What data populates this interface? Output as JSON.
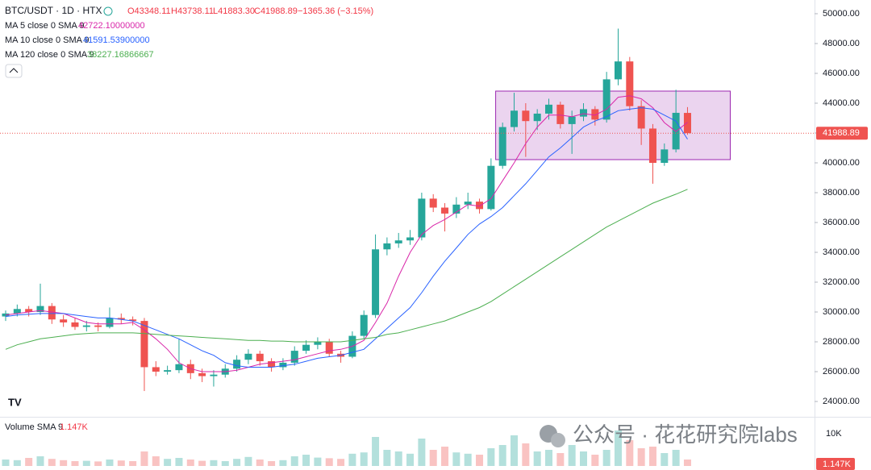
{
  "header": {
    "symbol": "BTC/USDT · 1D · HTX",
    "ohlc": [
      "O43348.11",
      "H43738.11",
      "L41883.30",
      "C41988.89"
    ],
    "change": "−1365.36 (−3.15%)"
  },
  "chart_data": {
    "type": "candlestick",
    "open": [
      29700,
      29900,
      30200,
      30000,
      30400,
      29500,
      29300,
      29000,
      29100,
      29000,
      29600,
      29500,
      29400,
      26300,
      26000,
      26100,
      26500,
      25900,
      25700,
      25800,
      26200,
      26800,
      27200,
      26700,
      26300,
      26600,
      27400,
      27800,
      28000,
      27200,
      27000,
      28400,
      29800,
      34200,
      34600,
      34800,
      35000,
      37600,
      37000,
      36600,
      37200,
      37400,
      36900,
      39800,
      42400,
      43500,
      42800,
      43300,
      43900,
      42600,
      43100,
      43600,
      42900,
      45600,
      46800,
      43800,
      42300,
      40000,
      40900,
      43348.11
    ],
    "high": [
      30100,
      30500,
      30400,
      31900,
      30600,
      29800,
      29600,
      29400,
      29300,
      30300,
      29900,
      29700,
      29600,
      26700,
      26400,
      28200,
      26800,
      26200,
      26100,
      26500,
      27100,
      27500,
      27400,
      26900,
      26900,
      27700,
      28100,
      28300,
      28200,
      27400,
      28700,
      30100,
      35200,
      35000,
      35300,
      35500,
      38000,
      37900,
      37300,
      37700,
      38000,
      37600,
      40300,
      42700,
      44700,
      44000,
      43600,
      44300,
      44100,
      43500,
      44000,
      43800,
      46100,
      49000,
      47100,
      44200,
      42600,
      41300,
      44900,
      43738.11
    ],
    "low": [
      29400,
      29700,
      29700,
      29800,
      29200,
      29000,
      28800,
      28700,
      28700,
      28900,
      29200,
      29100,
      24700,
      25700,
      25800,
      25900,
      25500,
      25300,
      25000,
      25600,
      26000,
      26500,
      26400,
      26000,
      26100,
      26400,
      27200,
      27500,
      27000,
      26600,
      26900,
      28200,
      29600,
      33800,
      34300,
      34500,
      34800,
      36700,
      35400,
      36300,
      36900,
      36600,
      36800,
      39600,
      42100,
      40400,
      42200,
      42900,
      42300,
      40600,
      42800,
      42500,
      42700,
      45200,
      43500,
      41200,
      38600,
      39800,
      40700,
      41883.3
    ],
    "close": [
      29900,
      30200,
      30000,
      30400,
      29500,
      29300,
      29000,
      29100,
      29000,
      29600,
      29500,
      29400,
      26300,
      26000,
      26100,
      26500,
      25900,
      25700,
      25800,
      26200,
      26800,
      27200,
      26700,
      26300,
      26600,
      27400,
      27800,
      28000,
      27200,
      27000,
      28400,
      29800,
      34200,
      34600,
      34800,
      35000,
      37600,
      37000,
      36600,
      37200,
      37400,
      36900,
      39800,
      42400,
      43500,
      42800,
      43300,
      43900,
      42600,
      43100,
      43600,
      42900,
      45600,
      46800,
      43800,
      42300,
      40000,
      40900,
      43354,
      41988.89
    ],
    "up_color": "#26a69a",
    "down_color": "#ef5350",
    "series": [
      {
        "name": "MA 5 close 0 SMA 9",
        "value_label": "42722.10000000",
        "color": "#d926a9",
        "values": [
          29800,
          29900,
          30000,
          30100,
          30000,
          29900,
          29600,
          29300,
          29200,
          29200,
          29200,
          29300,
          28800,
          28200,
          27500,
          26600,
          26200,
          26000,
          26000,
          26000,
          26100,
          26300,
          26500,
          26600,
          26700,
          26800,
          27000,
          27200,
          27400,
          27500,
          27700,
          28100,
          29300,
          30600,
          32400,
          34000,
          35200,
          35800,
          36200,
          36700,
          37200,
          37100,
          37600,
          38800,
          40000,
          41300,
          42400,
          43200,
          43200,
          43100,
          43300,
          43200,
          43600,
          44400,
          44500,
          44300,
          43700,
          42700,
          42100,
          42722.1
        ]
      },
      {
        "name": "MA 10 close 0 SMA 9",
        "value_label": "41591.53900000",
        "color": "#2962ff",
        "values": [
          29700,
          29800,
          29850,
          29900,
          29900,
          29900,
          29800,
          29700,
          29600,
          29600,
          29500,
          29400,
          29100,
          28800,
          28500,
          28200,
          27800,
          27400,
          27100,
          26600,
          26400,
          26300,
          26300,
          26300,
          26400,
          26500,
          26700,
          26900,
          27000,
          27100,
          27300,
          27500,
          28200,
          28900,
          29600,
          30300,
          31300,
          32400,
          33400,
          34300,
          35200,
          35900,
          36400,
          37000,
          37800,
          38600,
          39500,
          40400,
          41000,
          41700,
          42400,
          42800,
          43100,
          43500,
          43600,
          43700,
          43600,
          43200,
          42800,
          41591.539
        ]
      },
      {
        "name": "MA 120 close 0 SMA 9",
        "value_label": "38227.16866667",
        "color": "#4caf50",
        "values": [
          27500,
          27800,
          28000,
          28200,
          28300,
          28400,
          28500,
          28550,
          28600,
          28600,
          28600,
          28600,
          28550,
          28500,
          28450,
          28400,
          28350,
          28300,
          28250,
          28200,
          28150,
          28100,
          28100,
          28050,
          28050,
          28000,
          28000,
          28000,
          28000,
          28000,
          28100,
          28200,
          28300,
          28500,
          28600,
          28800,
          29000,
          29200,
          29400,
          29700,
          30000,
          30300,
          30700,
          31200,
          31700,
          32200,
          32700,
          33200,
          33700,
          34200,
          34700,
          35200,
          35700,
          36100,
          36500,
          36900,
          37300,
          37600,
          37900,
          38227.17
        ]
      }
    ],
    "ylim": [
      22973,
      50919
    ],
    "yticks": [
      {
        "value": 24000,
        "label": "24000.00"
      },
      {
        "value": 26000,
        "label": "26000.00"
      },
      {
        "value": 28000,
        "label": "28000.00"
      },
      {
        "value": 30000,
        "label": "30000.00"
      },
      {
        "value": 32000,
        "label": "32000.00"
      },
      {
        "value": 34000,
        "label": "34000.00"
      },
      {
        "value": 36000,
        "label": "36000.00"
      },
      {
        "value": 38000,
        "label": "38000.00"
      },
      {
        "value": 40000,
        "label": "40000.00"
      },
      {
        "value": 42000,
        "label": "42000.00"
      },
      {
        "value": 44000,
        "label": "44000.00"
      },
      {
        "value": 46000,
        "label": "46000.00"
      },
      {
        "value": 48000,
        "label": "48000.00"
      },
      {
        "value": 50000,
        "label": "50000.00"
      }
    ],
    "box": {
      "x0": 42.4,
      "x1": 62.7,
      "top": 44811,
      "bottom": 40216,
      "color": "#9c27b0"
    },
    "volume": {
      "name": "Volume SMA 9",
      "value_label": "1.147K",
      "ylim": [
        0,
        14500
      ],
      "yticks": [
        {
          "value": 10000,
          "label": "10K"
        }
      ],
      "values": [
        2000,
        1800,
        2500,
        3000,
        2200,
        1800,
        1500,
        1600,
        1400,
        2000,
        1700,
        1500,
        4500,
        3000,
        2200,
        2500,
        2000,
        1600,
        1800,
        1500,
        2200,
        2800,
        2000,
        1500,
        1800,
        3000,
        3500,
        2600,
        2400,
        2200,
        3800,
        4200,
        9000,
        5000,
        4500,
        3800,
        8500,
        5000,
        6000,
        4200,
        3800,
        3500,
        5500,
        6500,
        9500,
        7000,
        4500,
        5000,
        4000,
        6500,
        4500,
        3500,
        5000,
        11000,
        8000,
        5500,
        6000,
        4000,
        5000,
        2000
      ]
    }
  },
  "watermark": "公众号 · 花花研究院labs"
}
